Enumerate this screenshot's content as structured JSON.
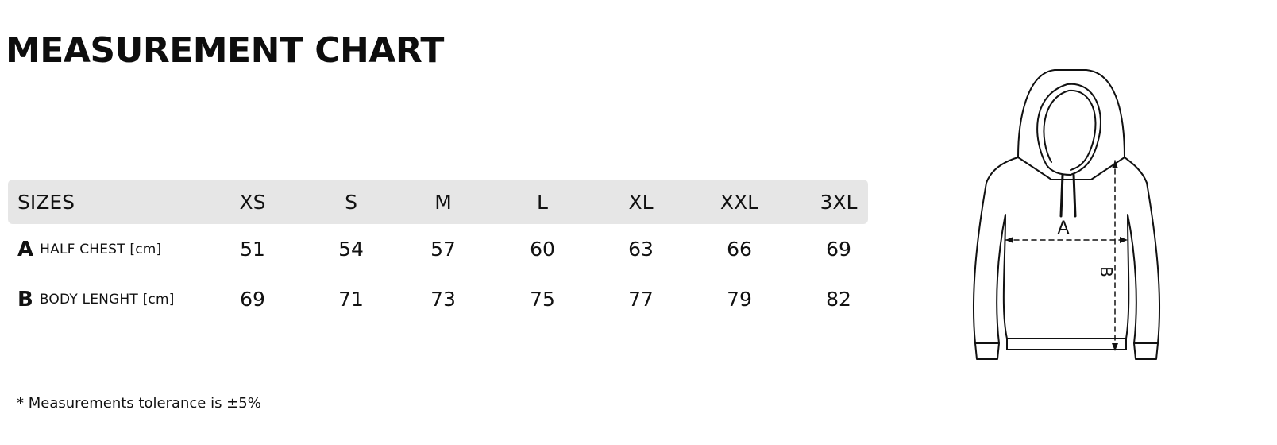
{
  "title": "MEASUREMENT CHART",
  "table": {
    "header": {
      "label": "SIZES",
      "sizes": [
        "XS",
        "S",
        "M",
        "L",
        "XL",
        "XXL",
        "3XL"
      ]
    },
    "rows": [
      {
        "letter": "A",
        "label": "HALF CHEST [cm]",
        "values": [
          "51",
          "54",
          "57",
          "60",
          "63",
          "66",
          "69"
        ]
      },
      {
        "letter": "B",
        "label": "BODY LENGHT [cm]",
        "values": [
          "69",
          "71",
          "73",
          "75",
          "77",
          "79",
          "82"
        ]
      }
    ]
  },
  "note": "* Measurements tolerance is ±5%",
  "diagram": {
    "icon": "hoodie-outline-icon",
    "label_a": "A",
    "label_b": "B"
  }
}
